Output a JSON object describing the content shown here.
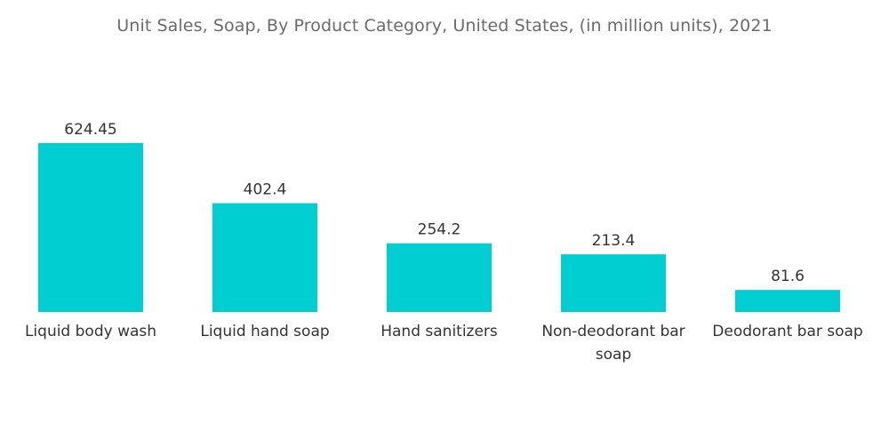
{
  "chart_data": {
    "type": "bar",
    "title": "Unit Sales, Soap, By Product Category, United States, (in million units), 2021",
    "xlabel": "",
    "ylabel": "",
    "categories": [
      [
        "Liquid body wash"
      ],
      [
        "Liquid hand soap"
      ],
      [
        "Hand sanitizers"
      ],
      [
        "Non-deodorant bar",
        "soap"
      ],
      [
        "Deodorant bar soap"
      ]
    ],
    "values": [
      624.45,
      402.4,
      254.2,
      213.4,
      81.6
    ],
    "value_labels": [
      "624.45",
      "402.4",
      "254.2",
      "213.4",
      "81.6"
    ],
    "ylim": [
      0,
      624.45
    ],
    "grid": false,
    "legend": "none",
    "bar_color": "#00ced1"
  }
}
